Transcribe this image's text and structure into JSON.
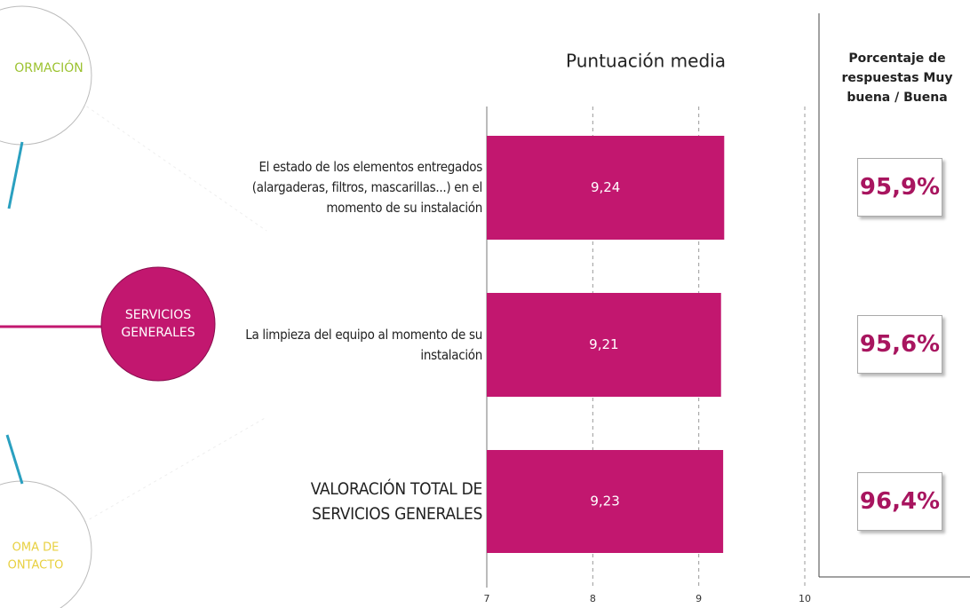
{
  "diagram": {
    "top_node": "ORMACIÓN",
    "center_node": "SERVICIOS GENERALES",
    "bottom_node_line1": "OMA DE",
    "bottom_node_line2": "ONTACTO"
  },
  "chart_data": {
    "type": "bar",
    "orientation": "horizontal",
    "title": "Puntuación media",
    "categories": [
      "El estado de los elementos entregados (alargaderas, filtros, mascarillas...) en el momento de su instalación",
      "La limpieza del equipo al momento de su instalación",
      "VALORACIÓN TOTAL DE SERVICIOS GENERALES"
    ],
    "values": [
      9.24,
      9.21,
      9.23
    ],
    "value_labels": [
      "9,24",
      "9,21",
      "9,23"
    ],
    "color": "#c2176f",
    "xlim": [
      7,
      10
    ],
    "xticks": [
      7,
      8,
      9,
      10
    ],
    "grid": true
  },
  "side_panel": {
    "header": "Porcentaje de respuestas Muy buena / Buena",
    "percentages": [
      "95,9%",
      "95,6%",
      "96,4%"
    ]
  }
}
